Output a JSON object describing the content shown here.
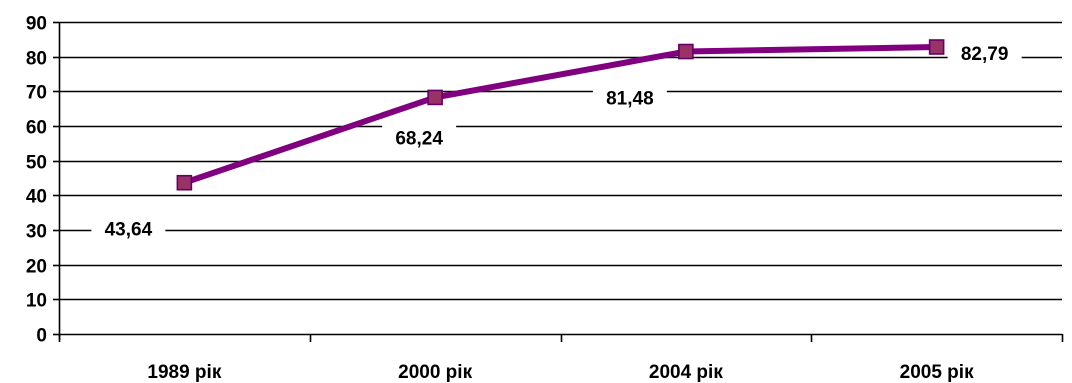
{
  "chart_data": {
    "type": "line",
    "categories": [
      "1989 рік",
      "2000 рік",
      "2004 рік",
      "2005 рік"
    ],
    "series": [
      {
        "values": [
          43.64,
          68.24,
          81.48,
          82.79
        ],
        "labels": [
          "43,64",
          "68,24",
          "81,48",
          "82,79"
        ]
      }
    ],
    "yticks": [
      "0",
      "10",
      "20",
      "30",
      "40",
      "50",
      "60",
      "70",
      "80",
      "90"
    ],
    "ylim": [
      0,
      90
    ],
    "grid": true,
    "legend": "none",
    "colors": {
      "line": "#800080",
      "marker_fill": "#993366",
      "marker_stroke": "#660066",
      "grid": "#000000"
    }
  }
}
